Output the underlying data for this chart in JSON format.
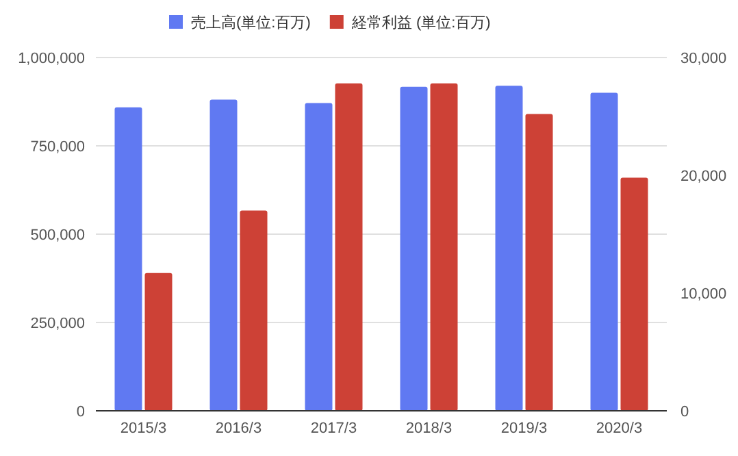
{
  "chart_data": {
    "type": "bar",
    "categories": [
      "2015/3",
      "2016/3",
      "2017/3",
      "2018/3",
      "2019/3",
      "2020/3"
    ],
    "series": [
      {
        "name": "売上高(単位:百万)",
        "color": "#6079f2",
        "values": [
          859000,
          881000,
          871000,
          917000,
          920000,
          900000
        ]
      },
      {
        "name": "経常利益 (単位:百万)",
        "color": "#cd4136",
        "axis": "y2",
        "values": [
          11700,
          17000,
          27800,
          27800,
          25200,
          19800
        ]
      }
    ],
    "ylim": [
      0,
      1000000
    ],
    "yticks": [
      {
        "value": 0,
        "label": "0"
      },
      {
        "value": 250000,
        "label": "250,000"
      },
      {
        "value": 500000,
        "label": "500,000"
      },
      {
        "value": 750000,
        "label": "750,000"
      },
      {
        "value": 1000000,
        "label": "1,000,000"
      }
    ],
    "y2lim": [
      0,
      30000
    ],
    "y2ticks": [
      {
        "value": 0,
        "label": "0"
      },
      {
        "value": 10000,
        "label": "10,000"
      },
      {
        "value": 20000,
        "label": "20,000"
      },
      {
        "value": 30000,
        "label": "30,000"
      }
    ],
    "grid": "y",
    "legend": "top"
  }
}
